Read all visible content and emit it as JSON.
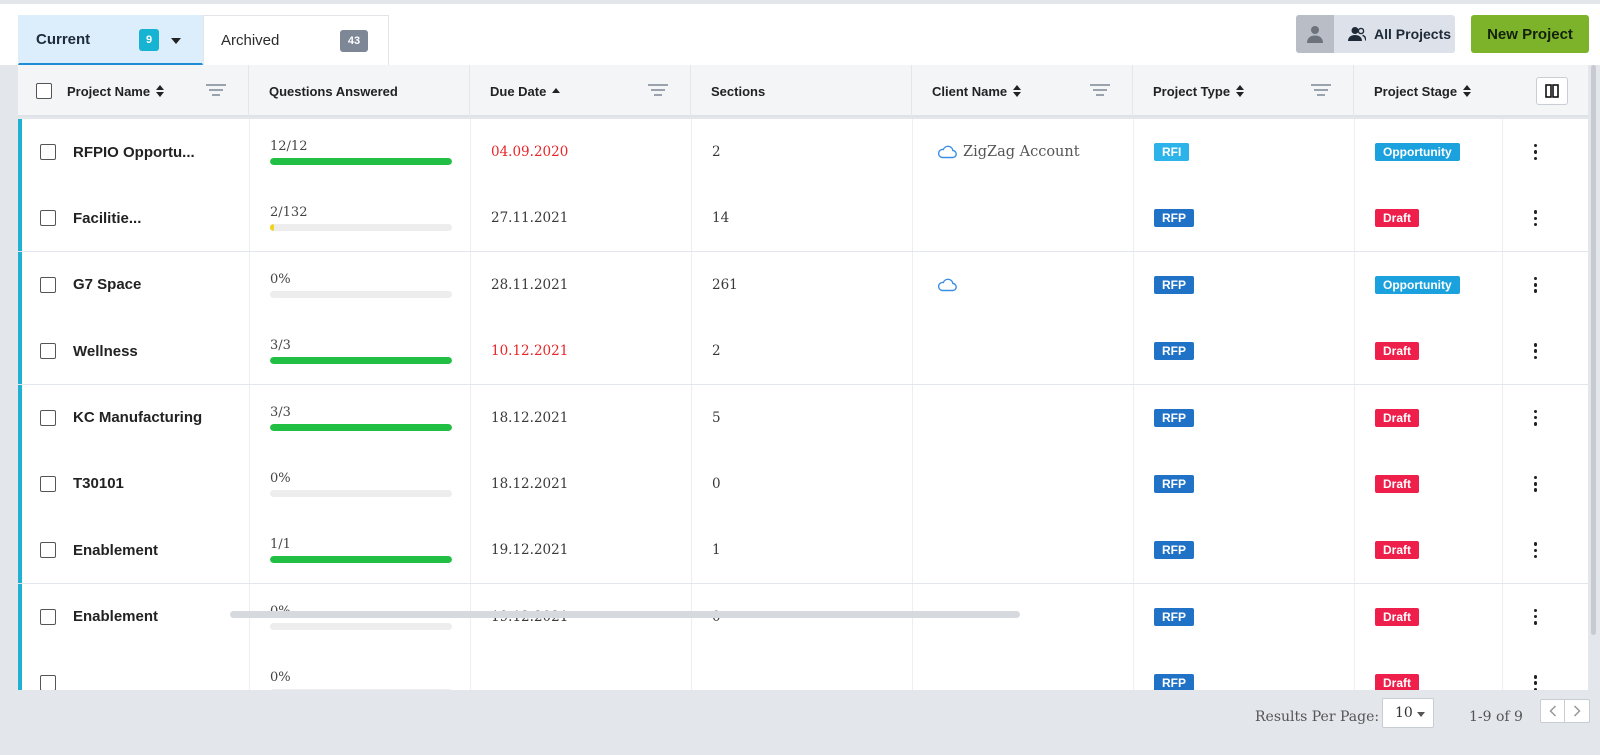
{
  "tabs": [
    {
      "label": "Current",
      "count": "9"
    },
    {
      "label": "Archived",
      "count": "43"
    }
  ],
  "toolbar": {
    "all_projects_label": "All Projects",
    "new_project_label": "New Project"
  },
  "columns": {
    "project_name": "Project Name",
    "questions_answered": "Questions Answered",
    "due_date": "Due Date",
    "sections": "Sections",
    "client_name": "Client Name",
    "project_type": "Project Type",
    "project_stage": "Project Stage"
  },
  "rows": [
    {
      "name": "RFPIO Opportu...",
      "questions": "12/12",
      "progress": 1.0,
      "due": "04.09.2020",
      "late": true,
      "sections": "2",
      "client": "ZigZag Account",
      "has_cloud": true,
      "type": "RFI",
      "stage": "Opportunity"
    },
    {
      "name": "Facilitie...",
      "questions": "2/132",
      "progress": 0.015,
      "due": "27.11.2021",
      "late": false,
      "sections": "14",
      "client": "",
      "has_cloud": false,
      "type": "RFP",
      "stage": "Draft"
    },
    {
      "name": "G7 Space",
      "questions": "0%",
      "progress": 0,
      "due": "28.11.2021",
      "late": false,
      "sections": "261",
      "client": "",
      "has_cloud": true,
      "type": "RFP",
      "stage": "Opportunity"
    },
    {
      "name": "Wellness",
      "questions": "3/3",
      "progress": 1.0,
      "due": "10.12.2021",
      "late": true,
      "sections": "2",
      "client": "",
      "has_cloud": false,
      "type": "RFP",
      "stage": "Draft"
    },
    {
      "name": "KC Manufacturing",
      "questions": "3/3",
      "progress": 1.0,
      "due": "18.12.2021",
      "late": false,
      "sections": "5",
      "client": "",
      "has_cloud": false,
      "type": "RFP",
      "stage": "Draft"
    },
    {
      "name": "T30101",
      "questions": "0%",
      "progress": 0,
      "due": "18.12.2021",
      "late": false,
      "sections": "0",
      "client": "",
      "has_cloud": false,
      "type": "RFP",
      "stage": "Draft"
    },
    {
      "name": "Enablement",
      "questions": "1/1",
      "progress": 1.0,
      "due": "19.12.2021",
      "late": false,
      "sections": "1",
      "client": "",
      "has_cloud": false,
      "type": "RFP",
      "stage": "Draft"
    },
    {
      "name": "Enablement",
      "questions": "0%",
      "progress": 0,
      "due": "19.12.2021",
      "late": false,
      "sections": "0",
      "client": "",
      "has_cloud": false,
      "type": "RFP",
      "stage": "Draft"
    },
    {
      "name": "",
      "questions": "0%",
      "progress": 0,
      "due": "",
      "late": false,
      "sections": "",
      "client": "",
      "has_cloud": false,
      "type": "RFP",
      "stage": "Draft"
    }
  ],
  "footer": {
    "results_per_page_label": "Results Per Page:",
    "results_per_page_value": "10",
    "range_text": "1-9 of 9"
  },
  "colors": {
    "accent": "#1fb0d3",
    "new_project": "#7db32a",
    "progress_full": "#22bf45",
    "progress_partial": "#f2d21b",
    "late_date": "#e8262a",
    "draft": "#ee1f4b",
    "opportunity": "#1ba2de",
    "rfp": "#1f72c6",
    "rfi": "#2bb3ea"
  }
}
